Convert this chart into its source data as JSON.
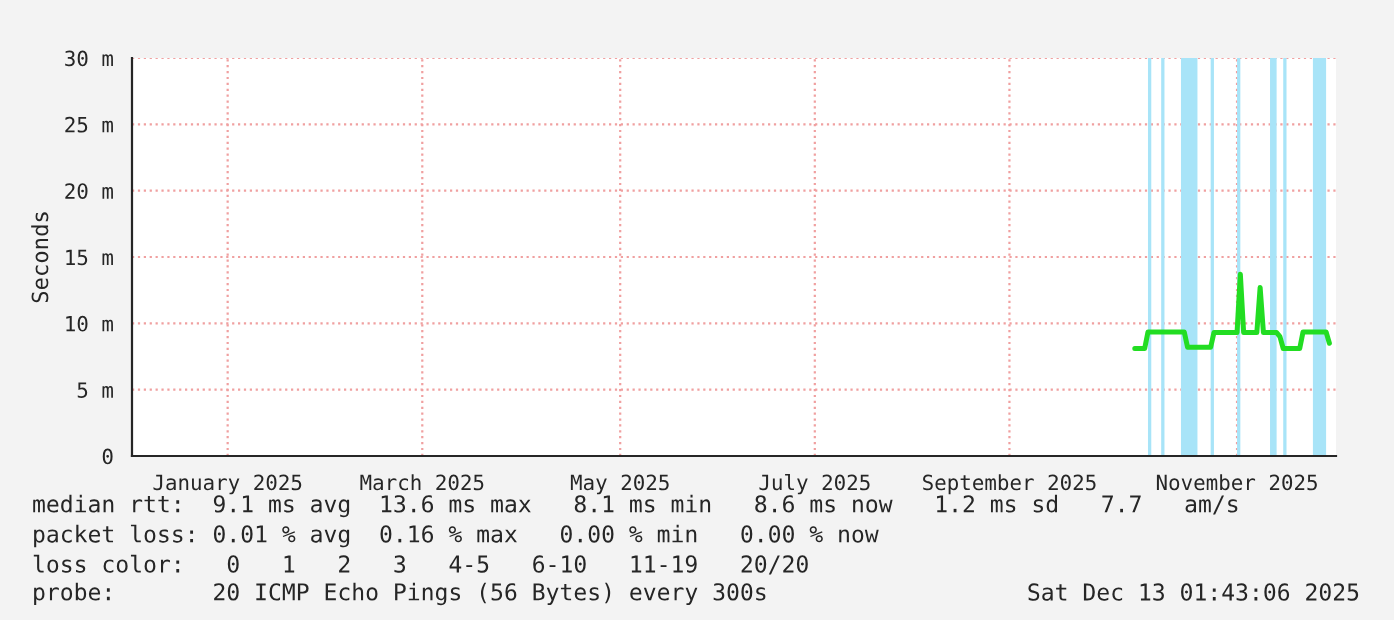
{
  "chart_data": {
    "type": "line",
    "ylabel": "Seconds",
    "series": [
      {
        "color": "#22dd22",
        "x": [
          "2025-10-13",
          "2025-10-16",
          "2025-10-17",
          "2025-10-28",
          "2025-10-29",
          "2025-11-05",
          "2025-11-06",
          "2025-11-13",
          "2025-11-14",
          "2025-11-15",
          "2025-11-19",
          "2025-11-20",
          "2025-11-21",
          "2025-11-25",
          "2025-11-26",
          "2025-11-27",
          "2025-12-02",
          "2025-12-03",
          "2025-12-10",
          "2025-12-11"
        ],
        "values": [
          8.1,
          8.1,
          9.35,
          9.35,
          8.2,
          8.2,
          9.3,
          9.3,
          13.7,
          9.3,
          9.3,
          12.7,
          9.3,
          9.3,
          9.0,
          8.1,
          8.1,
          9.35,
          9.35,
          8.5
        ]
      }
    ],
    "xlim": [
      "2024-12-13",
      "2025-12-13"
    ],
    "xticks": [
      {
        "value": "2025-01-11",
        "label": "January 2025"
      },
      {
        "value": "2025-03-11",
        "label": "March 2025"
      },
      {
        "value": "2025-05-10",
        "label": "May 2025"
      },
      {
        "value": "2025-07-08",
        "label": "July 2025"
      },
      {
        "value": "2025-09-05",
        "label": "September 2025"
      },
      {
        "value": "2025-11-13",
        "label": "November 2025"
      }
    ],
    "ylim": [
      0,
      30
    ],
    "yticks": [
      {
        "value": 0,
        "label": "0"
      },
      {
        "value": 5,
        "label": "5 m"
      },
      {
        "value": 10,
        "label": "10 m"
      },
      {
        "value": 15,
        "label": "15 m"
      },
      {
        "value": 20,
        "label": "20 m"
      },
      {
        "value": 25,
        "label": "25 m"
      },
      {
        "value": 30,
        "label": "30 m"
      }
    ],
    "bands": [
      {
        "axis": "x",
        "from": "2025-10-17",
        "to": "2025-10-18",
        "color": "#a8e4f8"
      },
      {
        "axis": "x",
        "from": "2025-10-21",
        "to": "2025-10-22",
        "color": "#a8e4f8"
      },
      {
        "axis": "x",
        "from": "2025-10-27",
        "to": "2025-11-01",
        "color": "#a8e4f8"
      },
      {
        "axis": "x",
        "from": "2025-11-05",
        "to": "2025-11-06",
        "color": "#a8e4f8"
      },
      {
        "axis": "x",
        "from": "2025-11-13",
        "to": "2025-11-14",
        "color": "#a8e4f8"
      },
      {
        "axis": "x",
        "from": "2025-11-23",
        "to": "2025-11-25",
        "color": "#a8e4f8"
      },
      {
        "axis": "x",
        "from": "2025-11-27",
        "to": "2025-11-28",
        "color": "#a8e4f8"
      },
      {
        "axis": "x",
        "from": "2025-12-06",
        "to": "2025-12-10",
        "color": "#a8e4f8"
      }
    ],
    "grid": true,
    "annotations": [
      "median rtt:  9.1 ms avg  13.6 ms max   8.1 ms min   8.6 ms now   1.2 ms sd   7.7   am/s",
      "packet loss: 0.01 % avg  0.16 % max   0.00 % min   0.00 % now",
      "loss color:   0   1   2   3   4-5   6-10   11-19   20/20",
      "probe:       20 ICMP Echo Pings (56 Bytes) every 300s",
      "Sat Dec 13 01:43:06 2025"
    ]
  }
}
